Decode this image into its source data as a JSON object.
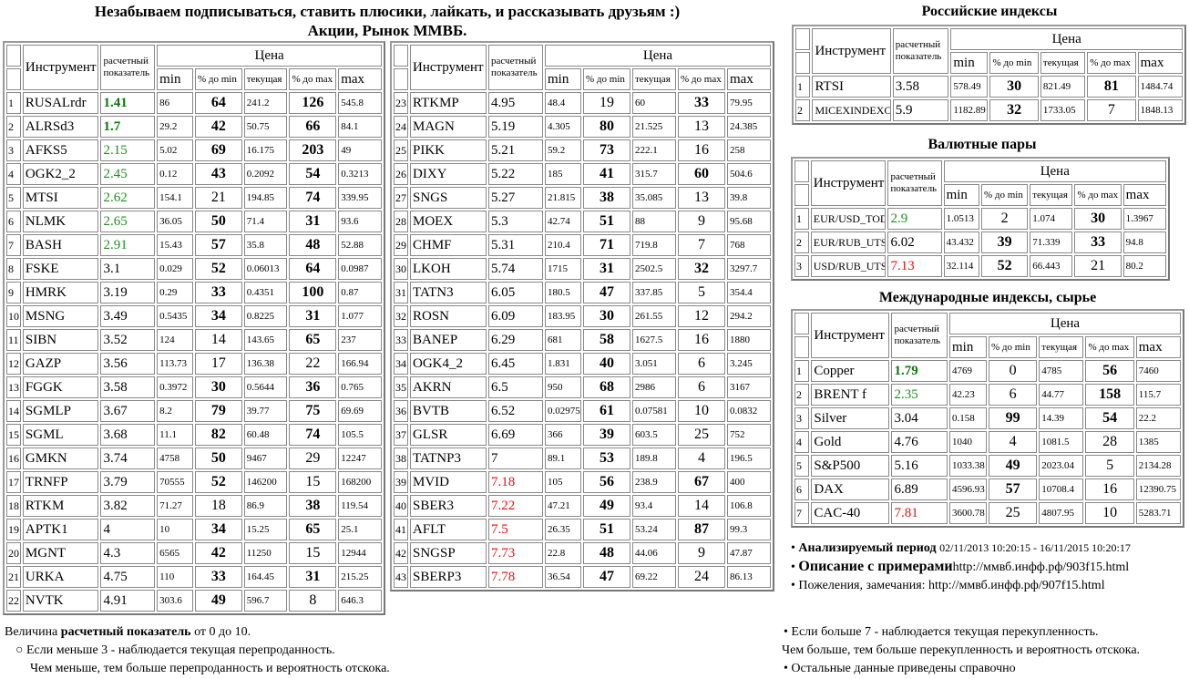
{
  "header": {
    "line1": "Незабываем подписываться, ставить плюсики, лайкать, и рассказывать друзьям :)",
    "line2": "Акции, Рынок ММВБ."
  },
  "columns": {
    "instrument": "Инструмент",
    "score_1": "расчетный",
    "score_2": "показатель",
    "price": "Цена",
    "min": "min",
    "pct_min": "% до min",
    "current": "текущая",
    "pct_max": "% до max",
    "max": "max"
  },
  "colors": {
    "oversold_strong": "#0a7a0a",
    "oversold": "#1f8f1f",
    "overbought": "#e01010"
  },
  "stocks_left": [
    [
      "1",
      "RUSALrdr",
      "1.41",
      "86",
      "64",
      "241.2",
      "126",
      "545.8"
    ],
    [
      "2",
      "ALRSd3",
      "1.7",
      "29.2",
      "42",
      "50.75",
      "66",
      "84.1"
    ],
    [
      "3",
      "AFKS5",
      "2.15",
      "5.02",
      "69",
      "16.175",
      "203",
      "49"
    ],
    [
      "4",
      "OGK2_2",
      "2.45",
      "0.12",
      "43",
      "0.2092",
      "54",
      "0.3213"
    ],
    [
      "5",
      "MTSI",
      "2.62",
      "154.1",
      "21",
      "194.85",
      "74",
      "339.95"
    ],
    [
      "6",
      "NLMK",
      "2.65",
      "36.05",
      "50",
      "71.4",
      "31",
      "93.6"
    ],
    [
      "7",
      "BASH",
      "2.91",
      "15.43",
      "57",
      "35.8",
      "48",
      "52.88"
    ],
    [
      "8",
      "FSKE",
      "3.1",
      "0.029",
      "52",
      "0.06013",
      "64",
      "0.0987"
    ],
    [
      "9",
      "HMRK",
      "3.19",
      "0.29",
      "33",
      "0.4351",
      "100",
      "0.87"
    ],
    [
      "10",
      "MSNG",
      "3.49",
      "0.5435",
      "34",
      "0.8225",
      "31",
      "1.077"
    ],
    [
      "11",
      "SIBN",
      "3.52",
      "124",
      "14",
      "143.65",
      "65",
      "237"
    ],
    [
      "12",
      "GAZP",
      "3.56",
      "113.73",
      "17",
      "136.38",
      "22",
      "166.94"
    ],
    [
      "13",
      "FGGK",
      "3.58",
      "0.3972",
      "30",
      "0.5644",
      "36",
      "0.765"
    ],
    [
      "14",
      "SGMLP",
      "3.67",
      "8.2",
      "79",
      "39.77",
      "75",
      "69.69"
    ],
    [
      "15",
      "SGML",
      "3.68",
      "11.1",
      "82",
      "60.48",
      "74",
      "105.5"
    ],
    [
      "16",
      "GMKN",
      "3.74",
      "4758",
      "50",
      "9467",
      "29",
      "12247"
    ],
    [
      "17",
      "TRNFP",
      "3.79",
      "70555",
      "52",
      "146200",
      "15",
      "168200"
    ],
    [
      "18",
      "RTKM",
      "3.82",
      "71.27",
      "18",
      "86.9",
      "38",
      "119.54"
    ],
    [
      "19",
      "APTK1",
      "4",
      "10",
      "34",
      "15.25",
      "65",
      "25.1"
    ],
    [
      "20",
      "MGNT",
      "4.3",
      "6565",
      "42",
      "11250",
      "15",
      "12944"
    ],
    [
      "21",
      "URKA",
      "4.75",
      "110",
      "33",
      "164.45",
      "31",
      "215.25"
    ],
    [
      "22",
      "NVTK",
      "4.91",
      "303.6",
      "49",
      "596.7",
      "8",
      "646.3"
    ]
  ],
  "stocks_right": [
    [
      "23",
      "RTKMP",
      "4.95",
      "48.4",
      "19",
      "60",
      "33",
      "79.95"
    ],
    [
      "24",
      "MAGN",
      "5.19",
      "4.305",
      "80",
      "21.525",
      "13",
      "24.385"
    ],
    [
      "25",
      "PIKK",
      "5.21",
      "59.2",
      "73",
      "222.1",
      "16",
      "258"
    ],
    [
      "26",
      "DIXY",
      "5.22",
      "185",
      "41",
      "315.7",
      "60",
      "504.6"
    ],
    [
      "27",
      "SNGS",
      "5.27",
      "21.815",
      "38",
      "35.085",
      "13",
      "39.8"
    ],
    [
      "28",
      "MOEX",
      "5.3",
      "42.74",
      "51",
      "88",
      "9",
      "95.68"
    ],
    [
      "29",
      "CHMF",
      "5.31",
      "210.4",
      "71",
      "719.8",
      "7",
      "768"
    ],
    [
      "30",
      "LKOH",
      "5.74",
      "1715",
      "31",
      "2502.5",
      "32",
      "3297.7"
    ],
    [
      "31",
      "TATN3",
      "6.05",
      "180.5",
      "47",
      "337.85",
      "5",
      "354.4"
    ],
    [
      "32",
      "ROSN",
      "6.09",
      "183.95",
      "30",
      "261.55",
      "12",
      "294.2"
    ],
    [
      "33",
      "BANEP",
      "6.29",
      "681",
      "58",
      "1627.5",
      "16",
      "1880"
    ],
    [
      "34",
      "OGK4_2",
      "6.45",
      "1.831",
      "40",
      "3.051",
      "6",
      "3.245"
    ],
    [
      "35",
      "AKRN",
      "6.5",
      "950",
      "68",
      "2986",
      "6",
      "3167"
    ],
    [
      "36",
      "BVTB",
      "6.52",
      "0.02975",
      "61",
      "0.07581",
      "10",
      "0.0832"
    ],
    [
      "37",
      "GLSR",
      "6.69",
      "366",
      "39",
      "603.5",
      "25",
      "752"
    ],
    [
      "38",
      "TATNP3",
      "7",
      "89.1",
      "53",
      "189.8",
      "4",
      "196.5"
    ],
    [
      "39",
      "MVID",
      "7.18",
      "105",
      "56",
      "238.9",
      "67",
      "400"
    ],
    [
      "40",
      "SBER3",
      "7.22",
      "47.21",
      "49",
      "93.4",
      "14",
      "106.8"
    ],
    [
      "41",
      "AFLT",
      "7.5",
      "26.35",
      "51",
      "53.24",
      "87",
      "99.3"
    ],
    [
      "42",
      "SNGSP",
      "7.73",
      "22.8",
      "48",
      "44.06",
      "9",
      "47.87"
    ],
    [
      "43",
      "SBERP3",
      "7.78",
      "36.54",
      "47",
      "69.22",
      "24",
      "86.13"
    ]
  ],
  "ru_indices": {
    "title": "Российские индексы",
    "rows": [
      [
        "1",
        "RTSI",
        "3.58",
        "578.49",
        "30",
        "821.49",
        "81",
        "1484.74"
      ],
      [
        "2",
        "MICEXINDEXCF",
        "5.9",
        "1182.89",
        "32",
        "1733.05",
        "7",
        "1848.13"
      ]
    ]
  },
  "fx": {
    "title": "Валютные пары",
    "rows": [
      [
        "1",
        "EUR/USD_TOD",
        "2.9",
        "1.0513",
        "2",
        "1.074",
        "30",
        "1.3967"
      ],
      [
        "2",
        "EUR/RUB_UTS",
        "6.02",
        "43.432",
        "39",
        "71.339",
        "33",
        "94.8"
      ],
      [
        "3",
        "USD/RUB_UTS",
        "7.13",
        "32.114",
        "52",
        "66.443",
        "21",
        "80.2"
      ]
    ]
  },
  "intl": {
    "title": "Международные индексы, сырье",
    "rows": [
      [
        "1",
        "Copper",
        "1.79",
        "4769",
        "0",
        "4785",
        "56",
        "7460"
      ],
      [
        "2",
        "BRENT f",
        "2.35",
        "42.23",
        "6",
        "44.77",
        "158",
        "115.7"
      ],
      [
        "3",
        "Silver",
        "3.04",
        "0.158",
        "99",
        "14.39",
        "54",
        "22.2"
      ],
      [
        "4",
        "Gold",
        "4.76",
        "1040",
        "4",
        "1081.5",
        "28",
        "1385"
      ],
      [
        "5",
        "S&P500",
        "5.16",
        "1033.38",
        "49",
        "2023.04",
        "5",
        "2134.28"
      ],
      [
        "6",
        "DAX",
        "6.89",
        "4596.93",
        "57",
        "10708.4",
        "16",
        "12390.75"
      ],
      [
        "7",
        "CAC-40",
        "7.81",
        "3600.78",
        "25",
        "4807.95",
        "10",
        "5283.71"
      ]
    ]
  },
  "info": {
    "period_label": "Анализируемый период",
    "period_value": "02/11/2013 10:20:15 - 16/11/2015 10:20:17",
    "desc_label": "Описание с примерами",
    "desc_link": "http://ммвб.инфф.рф/903f15.html",
    "feedback_label": "Пожеления, замечания: ",
    "feedback_link": "http://ммвб.инфф.рф/907f15.html"
  },
  "legend": {
    "intro_pre": "Величина ",
    "intro_bold": "расчетный показатель",
    "intro_post": " от 0 до 10.",
    "low_1": "Если меньше 3 - наблюдается текущая перепроданность.",
    "low_2": "Чем меньше, тем больше перепроданность и вероятность отскока.",
    "high_1": "Если больше 7 - наблюдается текущая перекупленность.",
    "high_2": "Чем больше, тем больше перекупленность и вероятность отскока.",
    "rest": "Остальные данные приведены справочно"
  }
}
